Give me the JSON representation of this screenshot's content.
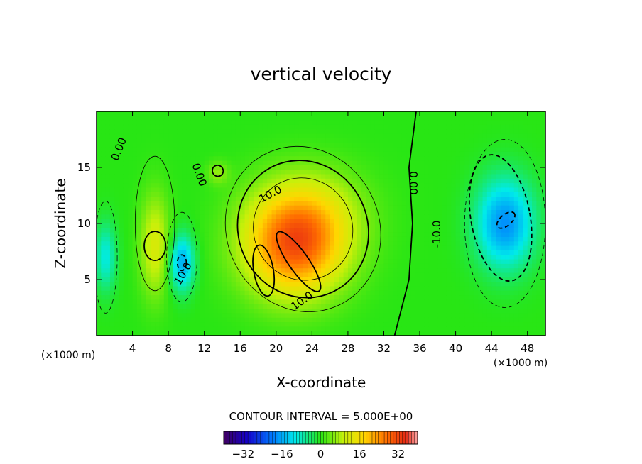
{
  "chart_data": {
    "type": "heatmap",
    "title": "vertical velocity",
    "xlabel": "X-coordinate",
    "ylabel": "Z-coordinate",
    "x_unit": "(×1000 m)",
    "y_unit": "(×1000 m)",
    "xlim": [
      0,
      50
    ],
    "ylim": [
      0,
      20
    ],
    "x_ticks": [
      "4",
      "8",
      "12",
      "16",
      "20",
      "24",
      "28",
      "32",
      "36",
      "40",
      "44",
      "48"
    ],
    "y_ticks": [
      "5",
      "10",
      "15"
    ],
    "contour_interval_text": "CONTOUR INTERVAL = 5.000E+00",
    "contour_labels": [
      "10.0",
      "10.0",
      "0.00",
      "0.00",
      "0.00",
      "-10.0",
      "10.0"
    ],
    "colorbar": {
      "range": [
        -40,
        40
      ],
      "ticks": [
        "-32",
        "-16",
        "0",
        "16",
        "32"
      ]
    },
    "features": [
      {
        "kind": "updraft",
        "x": 22,
        "z": 8,
        "peak": 28
      },
      {
        "kind": "updraft",
        "x": 6.5,
        "z": 8,
        "peak": 12
      },
      {
        "kind": "updraft",
        "x": 13.5,
        "z": 14.5,
        "peak": 6
      },
      {
        "kind": "downdraft",
        "x": 45.5,
        "z": 10,
        "peak": -18
      },
      {
        "kind": "downdraft",
        "x": 9.5,
        "z": 6.5,
        "peak": -16
      },
      {
        "kind": "downdraft",
        "x": 1,
        "z": 7,
        "peak": -10
      }
    ]
  }
}
